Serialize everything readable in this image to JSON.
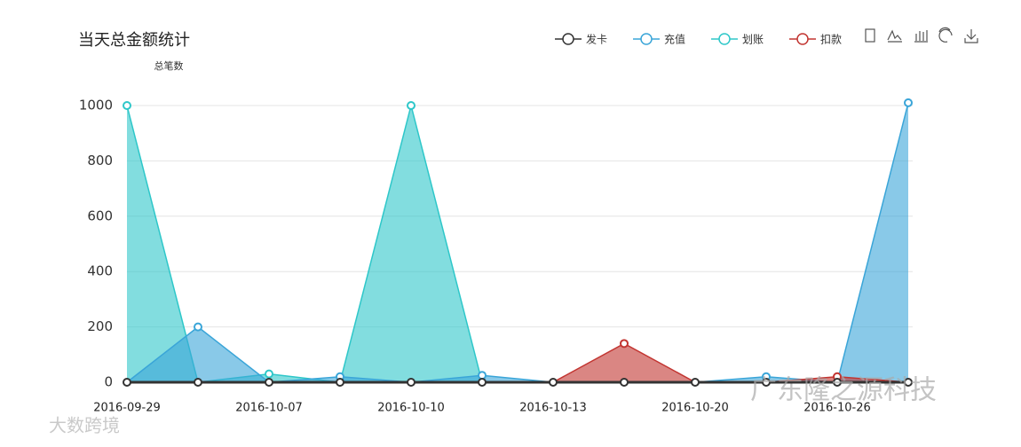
{
  "chart_data": {
    "type": "area",
    "title": "当天总金额统计",
    "y_axis_label": "总笔数",
    "categories": [
      "2016-09-29",
      null,
      "2016-10-07",
      null,
      "2016-10-10",
      null,
      "2016-10-13",
      null,
      "2016-10-20",
      null,
      "2016-10-26",
      null
    ],
    "series": [
      {
        "name": "发卡",
        "color": "#333333",
        "values": [
          0,
          0,
          0,
          0,
          0,
          0,
          0,
          0,
          0,
          0,
          0,
          0
        ]
      },
      {
        "name": "充值",
        "color": "#3aa5d8",
        "values": [
          0,
          200,
          0,
          20,
          0,
          25,
          0,
          0,
          0,
          20,
          0,
          1010
        ]
      },
      {
        "name": "划账",
        "color": "#2ec7c9",
        "values": [
          1000,
          0,
          30,
          0,
          1000,
          0,
          0,
          0,
          0,
          0,
          0,
          0
        ]
      },
      {
        "name": "扣款",
        "color": "#c23531",
        "values": [
          0,
          0,
          0,
          0,
          0,
          0,
          0,
          140,
          0,
          0,
          20,
          0
        ]
      }
    ],
    "ylim": [
      0,
      1000
    ],
    "yticks": [
      0,
      200,
      400,
      600,
      800,
      1000
    ],
    "grid": true,
    "legend": "top-right",
    "watermarks": [
      "广东隆之源科技",
      "大数跨境"
    ]
  }
}
